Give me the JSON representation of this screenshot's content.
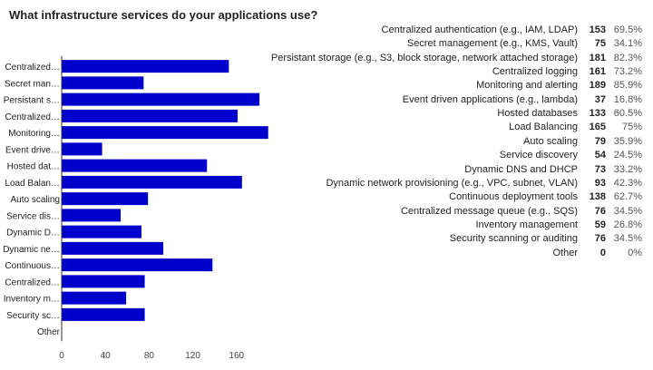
{
  "page": {
    "title": "What infrastructure services do your applications use?"
  },
  "chart_data": {
    "type": "bar",
    "orientation": "horizontal",
    "bar_color": "#0000cc",
    "categories": [
      "Centralized authentication (e.g., IAM, LDAP)",
      "Secret management (e.g., KMS, Vault)",
      "Persistant storage (e.g., S3, block storage, network attached storage)",
      "Centralized logging",
      "Monitoring and alerting",
      "Event driven applications (e.g., lambda)",
      "Hosted databases",
      "Load Balancing",
      "Auto scaling",
      "Service discovery",
      "Dynamic DNS and DHCP",
      "Dynamic network provisioning (e.g., VPC, subnet, VLAN)",
      "Continuous deployment tools",
      "Centralized message queue (e.g., SQS)",
      "Inventory management",
      "Security scanning or auditing",
      "Other"
    ],
    "axis_labels": [
      "Centralized…",
      "Secret man…",
      "Persistant s…",
      "Centralized…",
      "Monitoring…",
      "Event drive…",
      "Hosted dat…",
      "Load Balan…",
      "Auto scaling",
      "Service dis…",
      "Dynamic D…",
      "Dynamic ne…",
      "Continuous…",
      "Centralized…",
      "Inventory m…",
      "Security sc…",
      "Other"
    ],
    "values": [
      153,
      75,
      181,
      161,
      189,
      37,
      133,
      165,
      79,
      54,
      73,
      93,
      138,
      76,
      59,
      76,
      0
    ],
    "percentages": [
      "69.5%",
      "34.1%",
      "82.3%",
      "73.2%",
      "85.9%",
      "16.8%",
      "60.5%",
      "75%",
      "35.9%",
      "24.5%",
      "33.2%",
      "42.3%",
      "62.7%",
      "34.5%",
      "26.8%",
      "34.5%",
      "0%"
    ],
    "xticks": [
      0,
      40,
      80,
      120,
      160
    ],
    "xlim": [
      0,
      200
    ],
    "grid": false,
    "legend": "right"
  }
}
